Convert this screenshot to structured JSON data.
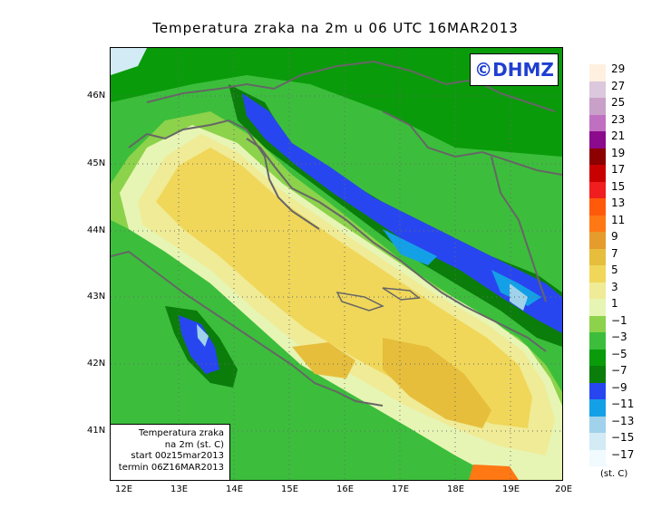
{
  "title": "Temperatura zraka na 2m u 06 UTC 16MAR2013",
  "logo": "©DHMZ",
  "infobox": {
    "line1": "Temperatura zraka",
    "line2": "na 2m (st. C)",
    "line3": "start 00z15mar2013",
    "line4": "termin 06Z16MAR2013"
  },
  "lat_labels": [
    "46N",
    "45N",
    "44N",
    "43N",
    "42N",
    "41N"
  ],
  "lon_labels": [
    "12E",
    "13E",
    "14E",
    "15E",
    "16E",
    "17E",
    "18E",
    "19E",
    "20E"
  ],
  "legend": {
    "unit": "(st. C)",
    "labels": [
      "29",
      "27",
      "25",
      "23",
      "21",
      "19",
      "17",
      "15",
      "13",
      "11",
      "9",
      "7",
      "5",
      "3",
      "1",
      "−1",
      "−3",
      "−5",
      "−7",
      "−9",
      "−11",
      "−13",
      "−15",
      "−17"
    ],
    "colors": [
      "#fff0e0",
      "#dcc8dc",
      "#c8a0c8",
      "#c070c0",
      "#8c0a8c",
      "#8c0000",
      "#c80000",
      "#f01e1e",
      "#ff5a0a",
      "#ff7814",
      "#e69b2d",
      "#e6be3c",
      "#f0d75a",
      "#f0eb96",
      "#e6f5b4",
      "#8cd24b",
      "#3cbe3c",
      "#0a9b0a",
      "#0a7d0a",
      "#2846f0",
      "#14a0e6",
      "#a0d2eb",
      "#d2ebf5",
      "#f0faff"
    ]
  }
}
